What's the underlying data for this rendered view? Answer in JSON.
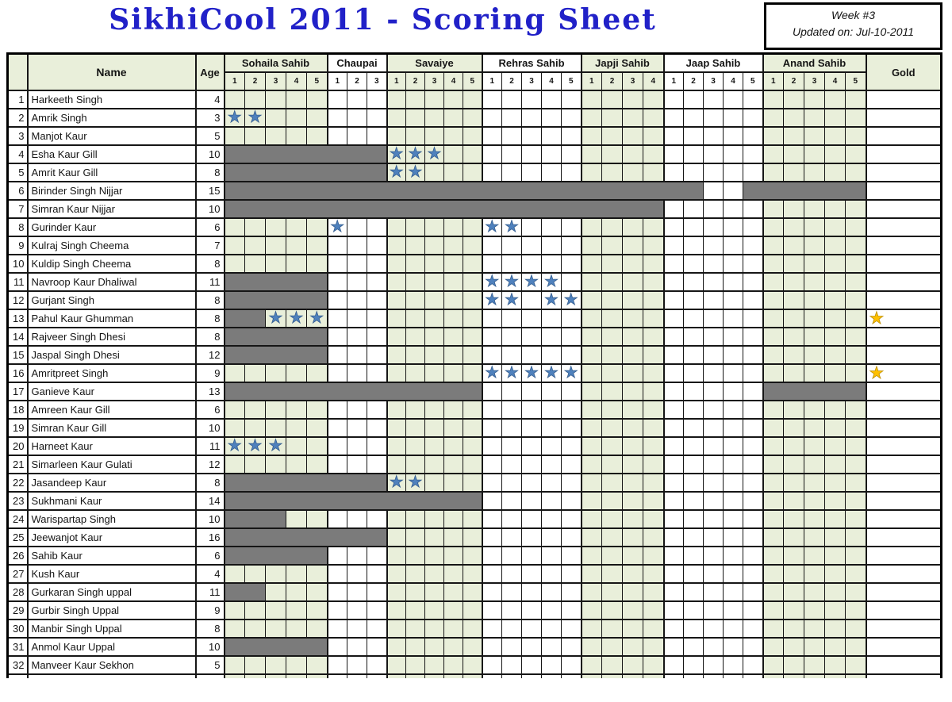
{
  "title": "SikhiCool 2011 - Scoring Sheet",
  "week_box": {
    "line1": "Week #3",
    "line2": "Updated on: Jul-10-2011"
  },
  "colors": {
    "title_blue": "#2121c8",
    "tint_green": "#e9efda",
    "bar_gray": "#7b7b7b",
    "star_blue": "#4f81bd",
    "star_gold": "#ffc000"
  },
  "table": {
    "corner_label": "",
    "name_header": "Name",
    "age_header": "Age",
    "gold_header": "Gold",
    "groups": [
      {
        "label": "Sohaila Sahib",
        "cols": [
          "1",
          "2",
          "3",
          "4",
          "5"
        ],
        "tinted": true
      },
      {
        "label": "Chaupai",
        "cols": [
          "1",
          "2",
          "3"
        ],
        "tinted": false
      },
      {
        "label": "Savaiye",
        "cols": [
          "1",
          "2",
          "3",
          "4",
          "5"
        ],
        "tinted": true
      },
      {
        "label": "Rehras Sahib",
        "cols": [
          "1",
          "2",
          "3",
          "4",
          "5"
        ],
        "tinted": false
      },
      {
        "label": "Japji Sahib",
        "cols": [
          "1",
          "2",
          "3",
          "4"
        ],
        "tinted": true
      },
      {
        "label": "Jaap Sahib",
        "cols": [
          "1",
          "2",
          "3",
          "4",
          "5"
        ],
        "tinted": false
      },
      {
        "label": "Anand Sahib",
        "cols": [
          "1",
          "2",
          "3",
          "4",
          "5"
        ],
        "tinted": true
      }
    ],
    "legend": {
      "blue_star_icon": "completed-session-star",
      "gold_star_icon": "gold-award-star",
      "gray_bar": "absent-blocked-range"
    },
    "rows": [
      {
        "n": 1,
        "name": "Harkeeth Singh",
        "age": 4,
        "bars": [],
        "stars": [],
        "gold": false
      },
      {
        "n": 2,
        "name": "Amrik Singh",
        "age": 3,
        "bars": [],
        "stars": [
          0,
          1
        ],
        "gold": false
      },
      {
        "n": 3,
        "name": "Manjot Kaur",
        "age": 5,
        "bars": [],
        "stars": [],
        "gold": false
      },
      {
        "n": 4,
        "name": "Esha Kaur Gill",
        "age": 10,
        "bars": [
          [
            0,
            7
          ]
        ],
        "stars": [
          8,
          9,
          10
        ],
        "gold": false
      },
      {
        "n": 5,
        "name": "Amrit Kaur Gill",
        "age": 8,
        "bars": [
          [
            0,
            7
          ]
        ],
        "stars": [
          8,
          9
        ],
        "gold": false
      },
      {
        "n": 6,
        "name": "Birinder Singh Nijjar",
        "age": 15,
        "bars": [
          [
            0,
            23
          ],
          [
            26,
            31
          ]
        ],
        "stars": [],
        "gold": false
      },
      {
        "n": 7,
        "name": "Simran Kaur Nijjar",
        "age": 10,
        "bars": [
          [
            0,
            21
          ]
        ],
        "stars": [],
        "gold": false
      },
      {
        "n": 8,
        "name": "Gurinder Kaur",
        "age": 6,
        "bars": [],
        "stars": [
          5,
          13,
          14
        ],
        "gold": false
      },
      {
        "n": 9,
        "name": "Kulraj Singh Cheema",
        "age": 7,
        "bars": [],
        "stars": [],
        "gold": false
      },
      {
        "n": 10,
        "name": "Kuldip Singh Cheema",
        "age": 8,
        "bars": [],
        "stars": [],
        "gold": false
      },
      {
        "n": 11,
        "name": "Navroop Kaur Dhaliwal",
        "age": 11,
        "bars": [
          [
            0,
            4
          ]
        ],
        "stars": [
          13,
          14,
          15,
          16
        ],
        "gold": false
      },
      {
        "n": 12,
        "name": "Gurjant Singh",
        "age": 8,
        "bars": [
          [
            0,
            4
          ]
        ],
        "stars": [
          13,
          14,
          16,
          17
        ],
        "gold": false
      },
      {
        "n": 13,
        "name": "Pahul Kaur Ghumman",
        "age": 8,
        "bars": [
          [
            0,
            1
          ]
        ],
        "stars": [
          2,
          3,
          4
        ],
        "gold": true
      },
      {
        "n": 14,
        "name": "Rajveer Singh Dhesi",
        "age": 8,
        "bars": [
          [
            0,
            4
          ]
        ],
        "stars": [],
        "gold": false
      },
      {
        "n": 15,
        "name": "Jaspal Singh Dhesi",
        "age": 12,
        "bars": [
          [
            0,
            4
          ]
        ],
        "stars": [],
        "gold": false
      },
      {
        "n": 16,
        "name": "Amritpreet Singh",
        "age": 9,
        "bars": [],
        "stars": [
          13,
          14,
          15,
          16,
          17
        ],
        "gold": true
      },
      {
        "n": 17,
        "name": "Ganieve Kaur",
        "age": 13,
        "bars": [
          [
            0,
            12
          ],
          [
            27,
            31
          ]
        ],
        "stars": [],
        "gold": false
      },
      {
        "n": 18,
        "name": "Amreen Kaur Gill",
        "age": 6,
        "bars": [],
        "stars": [],
        "gold": false
      },
      {
        "n": 19,
        "name": "Simran Kaur Gill",
        "age": 10,
        "bars": [],
        "stars": [],
        "gold": false
      },
      {
        "n": 20,
        "name": "Harneet Kaur",
        "age": 11,
        "bars": [],
        "stars": [
          0,
          1,
          2
        ],
        "gold": false
      },
      {
        "n": 21,
        "name": "Simarleen Kaur Gulati",
        "age": 12,
        "bars": [],
        "stars": [],
        "gold": false
      },
      {
        "n": 22,
        "name": "Jasandeep Kaur",
        "age": 8,
        "bars": [
          [
            0,
            7
          ]
        ],
        "stars": [
          8,
          9
        ],
        "gold": false
      },
      {
        "n": 23,
        "name": "Sukhmani Kaur",
        "age": 14,
        "bars": [
          [
            0,
            12
          ]
        ],
        "stars": [],
        "gold": false
      },
      {
        "n": 24,
        "name": "Warispartap Singh",
        "age": 10,
        "bars": [
          [
            0,
            2
          ]
        ],
        "stars": [],
        "gold": false
      },
      {
        "n": 25,
        "name": "Jeewanjot Kaur",
        "age": 16,
        "bars": [
          [
            0,
            7
          ]
        ],
        "stars": [],
        "gold": false
      },
      {
        "n": 26,
        "name": "Sahib Kaur",
        "age": 6,
        "bars": [
          [
            0,
            4
          ]
        ],
        "stars": [],
        "gold": false
      },
      {
        "n": 27,
        "name": "Kush Kaur",
        "age": 4,
        "bars": [],
        "stars": [],
        "gold": false
      },
      {
        "n": 28,
        "name": "Gurkaran Singh uppal",
        "age": 11,
        "bars": [
          [
            0,
            1
          ]
        ],
        "stars": [],
        "gold": false
      },
      {
        "n": 29,
        "name": "Gurbir Singh Uppal",
        "age": 9,
        "bars": [],
        "stars": [],
        "gold": false
      },
      {
        "n": 30,
        "name": "Manbir Singh Uppal",
        "age": 8,
        "bars": [],
        "stars": [],
        "gold": false
      },
      {
        "n": 31,
        "name": "Anmol Kaur Uppal",
        "age": 10,
        "bars": [
          [
            0,
            4
          ]
        ],
        "stars": [],
        "gold": false
      },
      {
        "n": 32,
        "name": "Manveer Kaur Sekhon",
        "age": 5,
        "bars": [],
        "stars": [],
        "gold": false
      }
    ]
  }
}
